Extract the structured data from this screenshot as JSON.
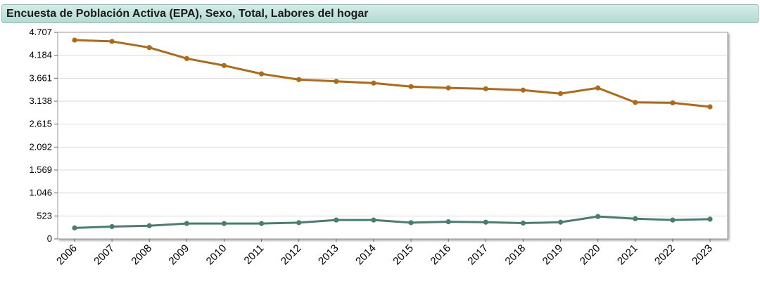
{
  "header": {
    "title": "Encuesta de Población Activa (EPA), Sexo, Total, Labores del hogar"
  },
  "colors": {
    "series_orange": "#b06a16",
    "series_teal": "#4a7d72",
    "grid": "#d9d9d9",
    "plot_border": "#999999"
  },
  "chart_data": {
    "type": "line",
    "title": "Encuesta de Población Activa (EPA), Sexo, Total, Labores del hogar",
    "xlabel": "",
    "ylabel": "",
    "grid": true,
    "ylim": [
      0,
      4707
    ],
    "yticks": [
      0,
      523,
      1046,
      1569,
      2092,
      2615,
      3138,
      3661,
      4184,
      4707
    ],
    "ytick_labels": [
      "0",
      "523",
      "1.046",
      "1.569",
      "2.092",
      "2.615",
      "3.138",
      "3.661",
      "4.184",
      "4.707"
    ],
    "categories": [
      "2006",
      "2007",
      "2008",
      "2009",
      "2010",
      "2011",
      "2012",
      "2013",
      "2014",
      "2015",
      "2016",
      "2017",
      "2018",
      "2019",
      "2020",
      "2021",
      "2022",
      "2023"
    ],
    "series": [
      {
        "color": "#b06a16",
        "values": [
          4530,
          4500,
          4360,
          4110,
          3950,
          3760,
          3630,
          3590,
          3550,
          3470,
          3440,
          3420,
          3390,
          3310,
          3440,
          3110,
          3100,
          3010
        ]
      },
      {
        "color": "#4a7d72",
        "values": [
          250,
          280,
          300,
          350,
          350,
          350,
          370,
          430,
          430,
          370,
          390,
          380,
          360,
          380,
          510,
          460,
          430,
          450
        ]
      }
    ]
  }
}
